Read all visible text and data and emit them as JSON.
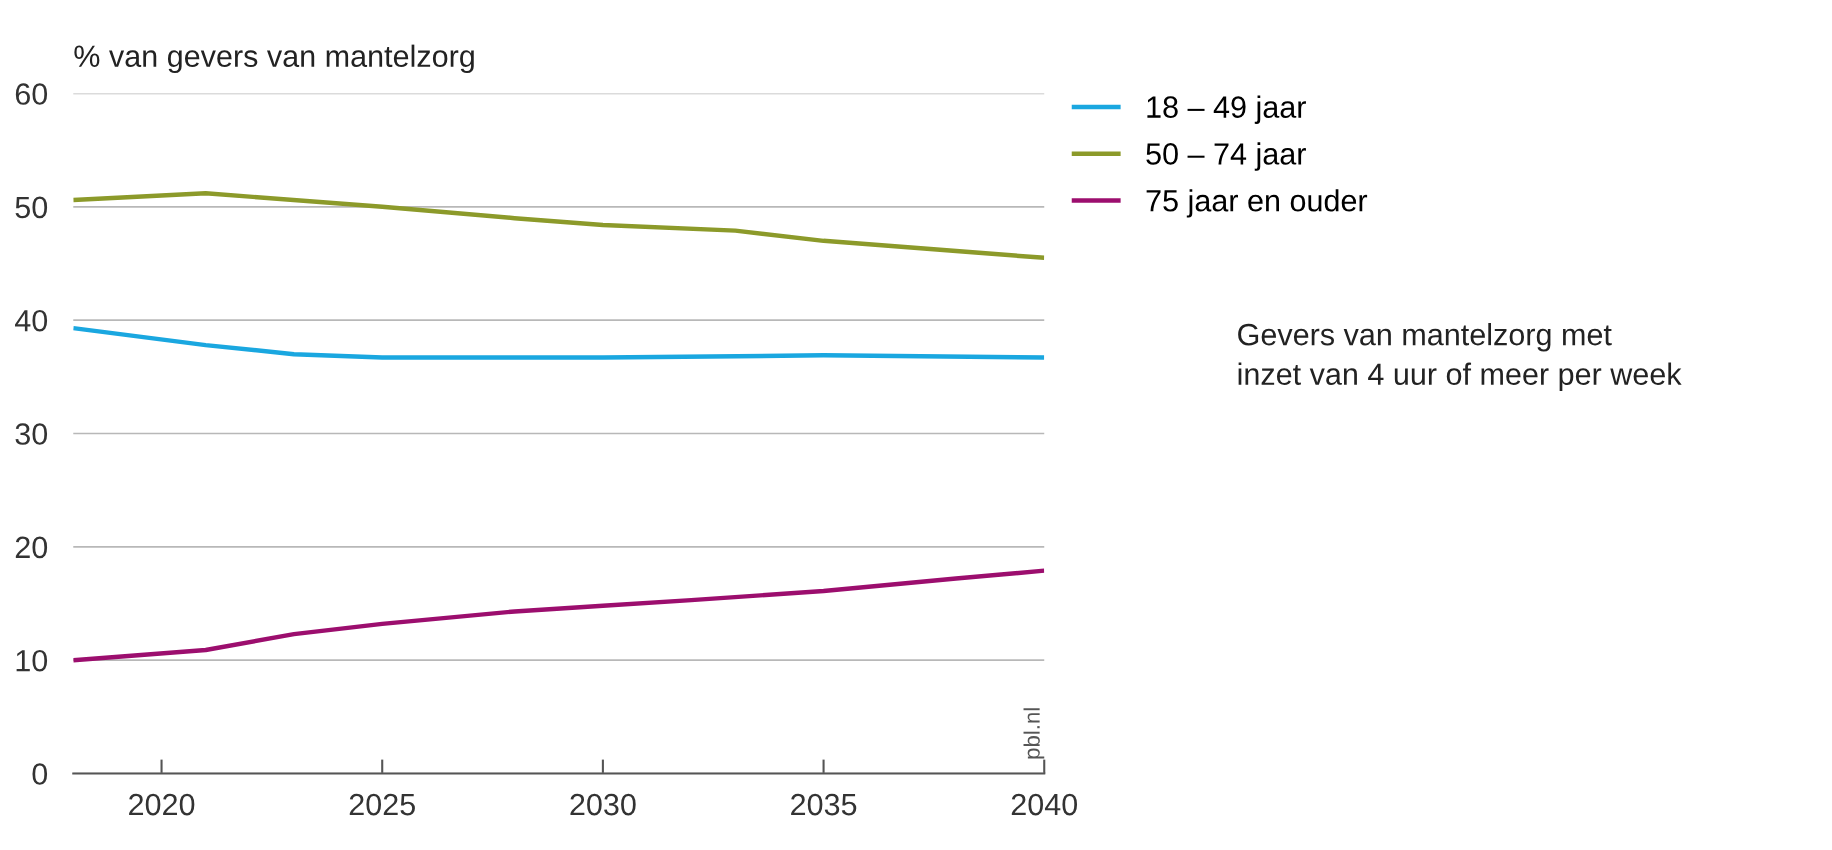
{
  "chart_data": {
    "type": "line",
    "ylabel": "% van gevers van mantelzorg",
    "xlim": [
      2018,
      2040
    ],
    "xticks": [
      2020,
      2025,
      2030,
      2035,
      2040
    ],
    "ylim": [
      0,
      60
    ],
    "yticks": [
      0,
      10,
      20,
      30,
      40,
      50,
      60
    ],
    "grid": "y",
    "legend": "top right",
    "line_style": "solid",
    "series": [
      {
        "name": "18 – 49 jaar",
        "color": "#1aa7e0",
        "x": [
          2018,
          2021,
          2023,
          2025,
          2030,
          2035,
          2040
        ],
        "values": [
          39.3,
          37.8,
          37.0,
          36.7,
          36.7,
          36.9,
          36.7
        ]
      },
      {
        "name": "50 – 74 jaar",
        "color": "#8c9a2a",
        "x": [
          2018,
          2021,
          2025,
          2028,
          2030,
          2033,
          2035,
          2040
        ],
        "values": [
          50.6,
          51.2,
          50.0,
          49.0,
          48.4,
          47.9,
          47.0,
          45.5
        ]
      },
      {
        "name": "75 jaar en ouder",
        "color": "#9c0e6e",
        "x": [
          2018,
          2021,
          2023,
          2025,
          2028,
          2030,
          2032,
          2035,
          2038,
          2040
        ],
        "values": [
          10.0,
          10.9,
          12.3,
          13.2,
          14.3,
          14.8,
          15.3,
          16.1,
          17.2,
          17.9
        ]
      }
    ],
    "annotations": [
      "Gevers van mantelzorg met\ninzet van 4 uur of meer per week",
      "pbl.nl"
    ]
  }
}
